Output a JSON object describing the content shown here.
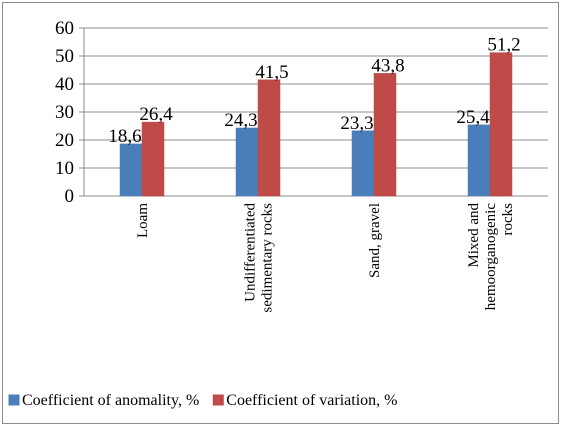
{
  "chart_data": {
    "type": "bar",
    "title": "",
    "xlabel": "",
    "ylabel": "",
    "ylim": [
      0,
      60
    ],
    "yticks": [
      0,
      10,
      20,
      30,
      40,
      50,
      60
    ],
    "grid": true,
    "legend_position": "bottom",
    "categories": [
      [
        "Loam"
      ],
      [
        "Undifferentiated",
        "sedimentary rocks"
      ],
      [
        "Sand, gravel"
      ],
      [
        "Mixed and",
        "hemoorganogenic",
        "rocks"
      ]
    ],
    "series": [
      {
        "name": "Coefficient of anomality, %",
        "color": "#4a7ebb",
        "values": [
          18.6,
          24.3,
          23.3,
          25.4
        ],
        "labels": [
          "18,6",
          "24,3",
          "23,3",
          "25,4"
        ]
      },
      {
        "name": "Coefficient of variation, %",
        "color": "#be4b48",
        "values": [
          26.4,
          41.5,
          43.8,
          51.2
        ],
        "labels": [
          "26,4",
          "41,5",
          "43,8",
          "51,2"
        ]
      }
    ]
  }
}
